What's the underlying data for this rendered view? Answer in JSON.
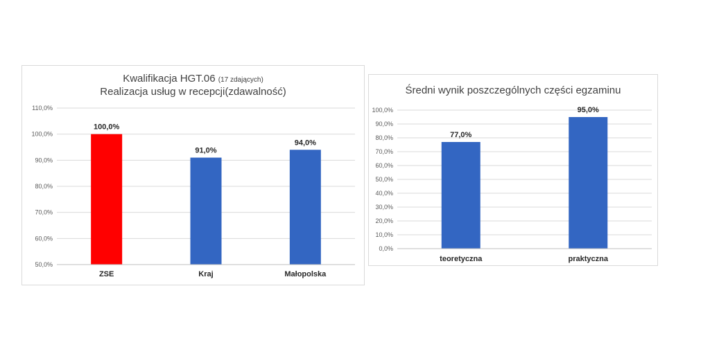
{
  "chart_data": [
    {
      "type": "bar",
      "title": "Kwalifikacja HGT.06",
      "title_note": "(17 zdających)",
      "subtitle": "Realizacja usług w recepcji(zdawalność)",
      "categories": [
        "ZSE",
        "Kraj",
        "Małopolska"
      ],
      "values": [
        100.0,
        91.0,
        94.0
      ],
      "data_labels": [
        "100,0%",
        "91,0%",
        "94,0%"
      ],
      "bar_colors": [
        "#ff0000",
        "#3366c2",
        "#3366c2"
      ],
      "xlabel": "",
      "ylabel": "",
      "ylim": [
        50,
        110
      ],
      "y_ticks": [
        "50,0%",
        "60,0%",
        "70,0%",
        "80,0%",
        "90,0%",
        "100,0%",
        "110,0%"
      ],
      "grid": true,
      "legend": "none"
    },
    {
      "type": "bar",
      "title": "Średni wynik poszczególnych części egzaminu",
      "categories": [
        "teoretyczna",
        "praktyczna"
      ],
      "values": [
        77.0,
        95.0
      ],
      "data_labels": [
        "77,0%",
        "95,0%"
      ],
      "bar_colors": [
        "#3366c2",
        "#3366c2"
      ],
      "xlabel": "",
      "ylabel": "",
      "ylim": [
        0,
        100
      ],
      "y_ticks": [
        "0,0%",
        "10,0%",
        "20,0%",
        "30,0%",
        "40,0%",
        "50,0%",
        "60,0%",
        "70,0%",
        "80,0%",
        "90,0%",
        "100,0%"
      ],
      "grid": true,
      "legend": "none"
    }
  ]
}
